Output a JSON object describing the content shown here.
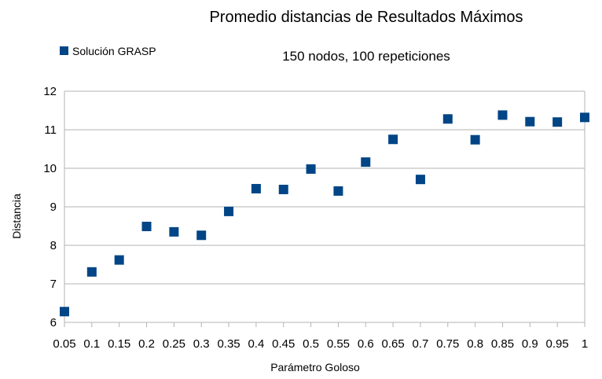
{
  "chart_data": {
    "type": "scatter",
    "title": "Promedio distancias de Resultados Máximos",
    "subtitle": "150 nodos, 100 repeticiones",
    "xlabel": "Parámetro Goloso",
    "ylabel": "Distancia",
    "ylim": [
      6,
      12
    ],
    "yticks": [
      "6",
      "7",
      "8",
      "9",
      "10",
      "11",
      "12"
    ],
    "grid": true,
    "legend_position": "top-left",
    "categories": [
      "0.05",
      "0.1",
      "0.15",
      "0.2",
      "0.25",
      "0.3",
      "0.35",
      "0.4",
      "0.45",
      "0.5",
      "0.55",
      "0.6",
      "0.65",
      "0.7",
      "0.75",
      "0.8",
      "0.85",
      "0.9",
      "0.95",
      "1"
    ],
    "series": [
      {
        "name": "Solución GRASP",
        "color": "#004586",
        "values": [
          6.28,
          7.31,
          7.62,
          8.49,
          8.35,
          8.26,
          8.88,
          9.47,
          9.45,
          9.98,
          9.41,
          10.16,
          10.75,
          9.71,
          11.28,
          10.74,
          11.38,
          11.21,
          11.2,
          11.32
        ]
      }
    ]
  }
}
